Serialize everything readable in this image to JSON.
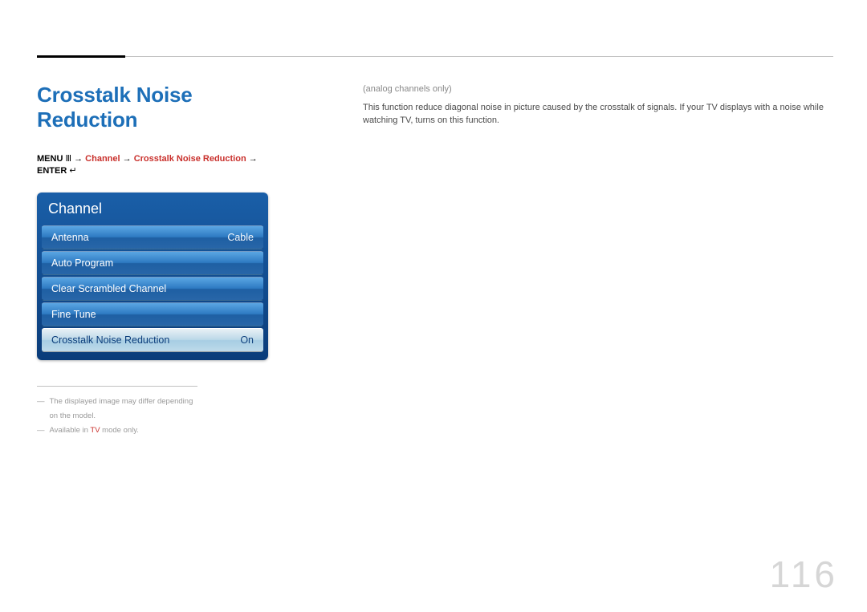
{
  "colors": {
    "title": "#1d6fb8",
    "accent_text": "#c9302c",
    "osd_gradient_top": "#1a5fa8",
    "osd_gradient_bottom": "#0a3c7a",
    "osd_item_top": "#5aa6e3",
    "osd_item_bottom": "#2866a8",
    "osd_selected_top": "#e8f1f6",
    "osd_selected_bottom": "#bedaea",
    "page_number": "#d6d6d6",
    "footnote": "#9a9a9a",
    "rule": "#c0c0c0"
  },
  "title": "Crosstalk Noise Reduction",
  "breadcrumb": {
    "menu_label": "MENU",
    "menu_icon": "Ⅲ",
    "arrow": "→",
    "seg_channel": "Channel",
    "seg_cnr": "Crosstalk Noise Reduction",
    "enter_label": "ENTER",
    "enter_icon": "↵"
  },
  "osd": {
    "header": "Channel",
    "items": [
      {
        "label": "Antenna",
        "value": "Cable",
        "selected": false
      },
      {
        "label": "Auto Program",
        "value": "",
        "selected": false
      },
      {
        "label": "Clear Scrambled Channel",
        "value": "",
        "selected": false
      },
      {
        "label": "Fine Tune",
        "value": "",
        "selected": false
      },
      {
        "label": "Crosstalk Noise Reduction",
        "value": "On",
        "selected": true
      }
    ]
  },
  "right": {
    "note_header": "(analog channels only)",
    "body": "This function reduce diagonal noise in picture caused by the crosstalk of signals. If your TV displays with a noise while watching TV, turns on this function."
  },
  "footnotes": {
    "f1": "The displayed image may differ depending on the model.",
    "f2_pre": "Available in ",
    "f2_tv": "TV",
    "f2_post": " mode only."
  },
  "page_number": "116"
}
